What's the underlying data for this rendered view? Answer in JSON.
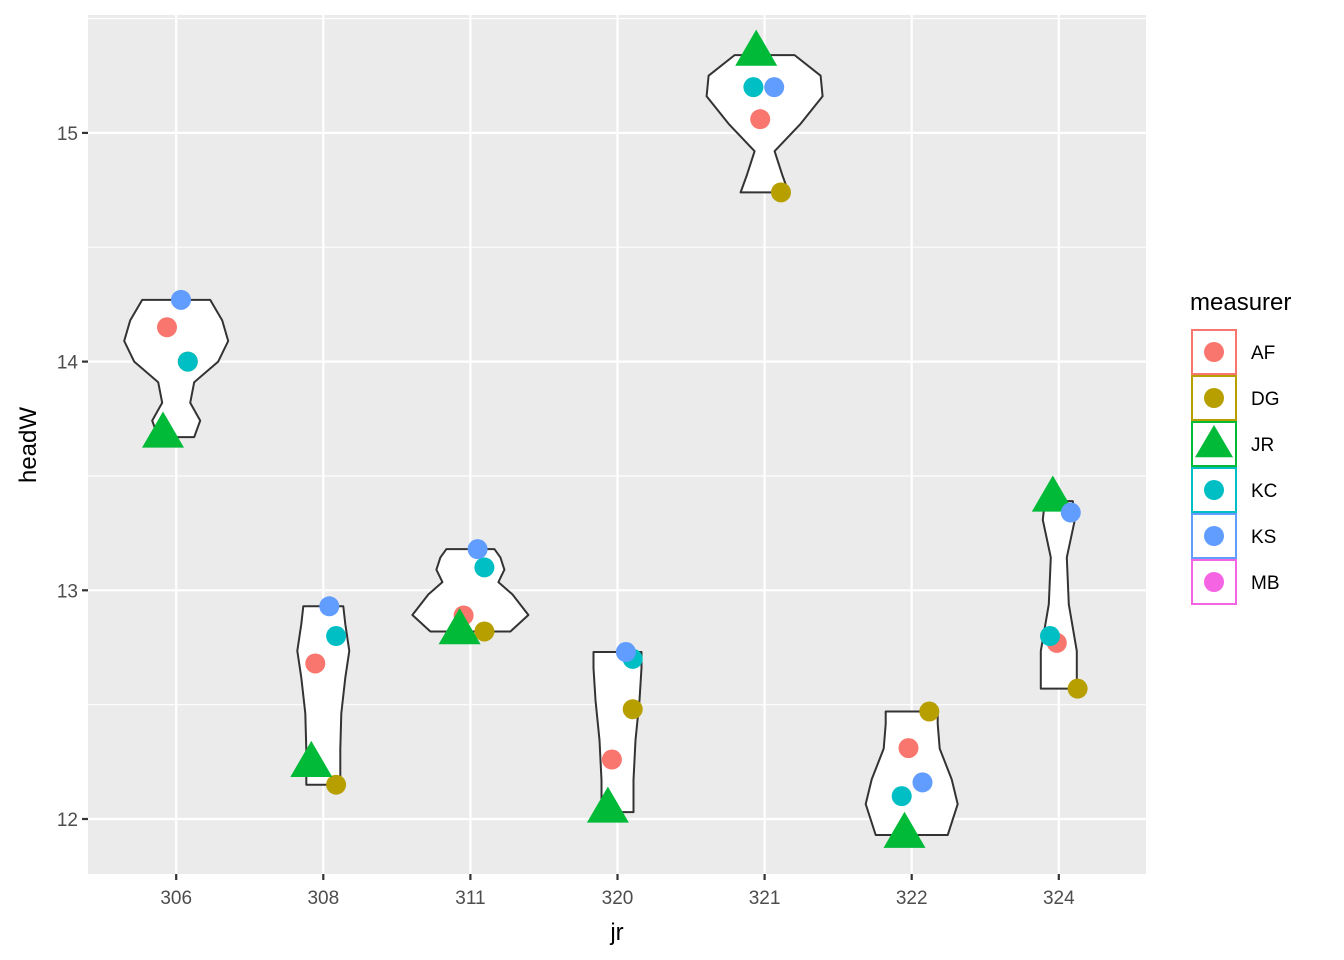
{
  "chart_data": {
    "type": "violin+scatter",
    "xlabel": "jr",
    "ylabel": "headW",
    "x_categories": [
      "306",
      "308",
      "311",
      "320",
      "321",
      "322",
      "324"
    ],
    "y_ticks": [
      12,
      13,
      14,
      15
    ],
    "ylim": [
      11.75,
      15.5
    ],
    "grid": true,
    "legend": {
      "title": "measurer",
      "position": "right",
      "entries": [
        {
          "label": "AF",
          "color": "#F8766D",
          "shape": "circle"
        },
        {
          "label": "DG",
          "color": "#B79F00",
          "shape": "circle"
        },
        {
          "label": "JR",
          "color": "#00BA38",
          "shape": "triangle"
        },
        {
          "label": "KC",
          "color": "#00BFC4",
          "shape": "circle"
        },
        {
          "label": "KS",
          "color": "#619CFF",
          "shape": "circle"
        },
        {
          "label": "MB",
          "color": "#F564E3",
          "shape": "circle"
        }
      ]
    },
    "violins": [
      {
        "jr": "306",
        "min": 13.67,
        "max": 14.27
      },
      {
        "jr": "308",
        "min": 12.15,
        "max": 12.93
      },
      {
        "jr": "311",
        "min": 12.82,
        "max": 13.18
      },
      {
        "jr": "320",
        "min": 12.03,
        "max": 12.73
      },
      {
        "jr": "321",
        "min": 14.74,
        "max": 15.34
      },
      {
        "jr": "322",
        "min": 11.93,
        "max": 12.47
      },
      {
        "jr": "324",
        "min": 12.57,
        "max": 13.39
      }
    ],
    "points": [
      {
        "jr": "306",
        "measurer": "AF",
        "headW": 14.15
      },
      {
        "jr": "306",
        "measurer": "DG",
        "headW": 14.0
      },
      {
        "jr": "306",
        "measurer": "JR",
        "headW": 13.69
      },
      {
        "jr": "306",
        "measurer": "KC",
        "headW": 14.0
      },
      {
        "jr": "306",
        "measurer": "KS",
        "headW": 14.27
      },
      {
        "jr": "308",
        "measurer": "AF",
        "headW": 12.68
      },
      {
        "jr": "308",
        "measurer": "DG",
        "headW": 12.15
      },
      {
        "jr": "308",
        "measurer": "JR",
        "headW": 12.25
      },
      {
        "jr": "308",
        "measurer": "KC",
        "headW": 12.8
      },
      {
        "jr": "308",
        "measurer": "KS",
        "headW": 12.93
      },
      {
        "jr": "311",
        "measurer": "AF",
        "headW": 12.89
      },
      {
        "jr": "311",
        "measurer": "DG",
        "headW": 12.82
      },
      {
        "jr": "311",
        "measurer": "JR",
        "headW": 12.83
      },
      {
        "jr": "311",
        "measurer": "KC",
        "headW": 13.1
      },
      {
        "jr": "311",
        "measurer": "KS",
        "headW": 13.18
      },
      {
        "jr": "320",
        "measurer": "AF",
        "headW": 12.26
      },
      {
        "jr": "320",
        "measurer": "DG",
        "headW": 12.48
      },
      {
        "jr": "320",
        "measurer": "JR",
        "headW": 12.05
      },
      {
        "jr": "320",
        "measurer": "KC",
        "headW": 12.7
      },
      {
        "jr": "320",
        "measurer": "KS",
        "headW": 12.73
      },
      {
        "jr": "321",
        "measurer": "AF",
        "headW": 15.06
      },
      {
        "jr": "321",
        "measurer": "DG",
        "headW": 14.74
      },
      {
        "jr": "321",
        "measurer": "JR",
        "headW": 15.36
      },
      {
        "jr": "321",
        "measurer": "KC",
        "headW": 15.2
      },
      {
        "jr": "321",
        "measurer": "KS",
        "headW": 15.2
      },
      {
        "jr": "322",
        "measurer": "AF",
        "headW": 12.31
      },
      {
        "jr": "322",
        "measurer": "DG",
        "headW": 12.47
      },
      {
        "jr": "322",
        "measurer": "JR",
        "headW": 11.94
      },
      {
        "jr": "322",
        "measurer": "KC",
        "headW": 12.1
      },
      {
        "jr": "322",
        "measurer": "KS",
        "headW": 12.16
      },
      {
        "jr": "324",
        "measurer": "AF",
        "headW": 12.77
      },
      {
        "jr": "324",
        "measurer": "DG",
        "headW": 12.57
      },
      {
        "jr": "324",
        "measurer": "JR",
        "headW": 13.41
      },
      {
        "jr": "324",
        "measurer": "KC",
        "headW": 12.8
      },
      {
        "jr": "324",
        "measurer": "KS",
        "headW": 13.34
      }
    ]
  }
}
